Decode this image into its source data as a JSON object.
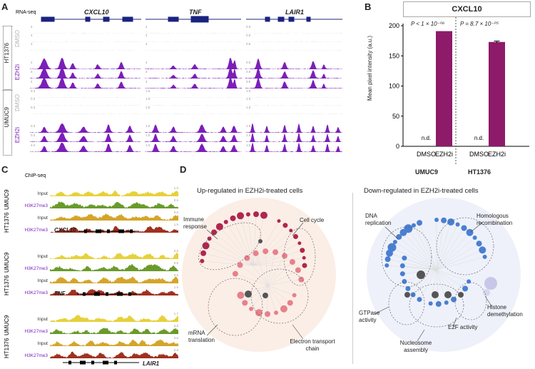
{
  "panel_a": {
    "label": "A",
    "assay": "RNA-seq",
    "genes": [
      "CXCL10",
      "TNF",
      "LAIR1"
    ],
    "cell_lines": [
      "HT1376",
      "UMUC9"
    ],
    "conditions": [
      "DMSO",
      "EZH2i"
    ],
    "scales_ht1376": [
      "4",
      "4",
      "0.5"
    ],
    "scales_umuc9": [
      "0.3",
      "1.5",
      "1.5"
    ],
    "colors": {
      "dmso": "#b3b3b3",
      "ezh2i": "#7b1fb8",
      "gene": "#1a237e"
    }
  },
  "panel_b": {
    "label": "B",
    "title": "CXCL10",
    "ylabel": "Mean pixel intensity (a.u.)",
    "group_labels": [
      "UMUC9",
      "HT1376"
    ],
    "nd_label": "n.d.",
    "pvalues": [
      "P < 1 × 10⁻⁰⁶",
      "P = 8.7 × 10⁻⁰⁵"
    ],
    "bar_color": "#8e1a6a"
  },
  "chart_data": {
    "type": "bar",
    "title": "CXCL10",
    "ylabel": "Mean pixel intensity (a.u.)",
    "categories": [
      "DMSO",
      "EZH2i",
      "DMSO",
      "EZH2i"
    ],
    "groups": [
      "UMUC9",
      "UMUC9",
      "HT1376",
      "HT1376"
    ],
    "values": [
      0,
      191,
      0,
      173
    ],
    "errors": [
      0,
      0,
      0,
      1.5
    ],
    "ylim": [
      0,
      200
    ],
    "yticks": [
      "0",
      "50",
      "100",
      "150",
      "200"
    ]
  },
  "panel_c": {
    "label": "C",
    "assay": "ChIP-seq",
    "cell_lines": [
      "UMUC9",
      "HT1376"
    ],
    "track_labels": [
      "Input",
      "H3K27me3"
    ],
    "genes": [
      "CXCL10",
      "TNF",
      "LAIR1"
    ],
    "scales": [
      "1.0",
      "0.6",
      "0.6",
      "1.5",
      "0.6",
      "0.6",
      "0.6",
      "1.5",
      "1.7",
      "0.8",
      "0.6",
      "0.8"
    ],
    "colors": {
      "input_umuc9": "#e6d13a",
      "h3k_umuc9": "#6a9a2b",
      "input_ht1376": "#d4a52a",
      "h3k_ht1376": "#a0301f",
      "label": "#7b1fb8"
    }
  },
  "panel_d": {
    "label": "D",
    "up_title": "Up-regulated in EZH2i-treated cells",
    "down_title": "Down-regulated in EZH2i-treated cells",
    "up_clusters": [
      "Immune response",
      "Cell cycle",
      "mRNA translation",
      "Electron transport chain"
    ],
    "down_clusters": [
      "DNA replication",
      "Homologous recombination",
      "GTPase activity",
      "Histone demethylation",
      "Nucleosome assembly",
      "E2F activity"
    ],
    "colors": {
      "up_dark": "#b0264e",
      "up_light": "#e8808a",
      "down": "#4a7fd0",
      "grey": "#555555"
    }
  }
}
